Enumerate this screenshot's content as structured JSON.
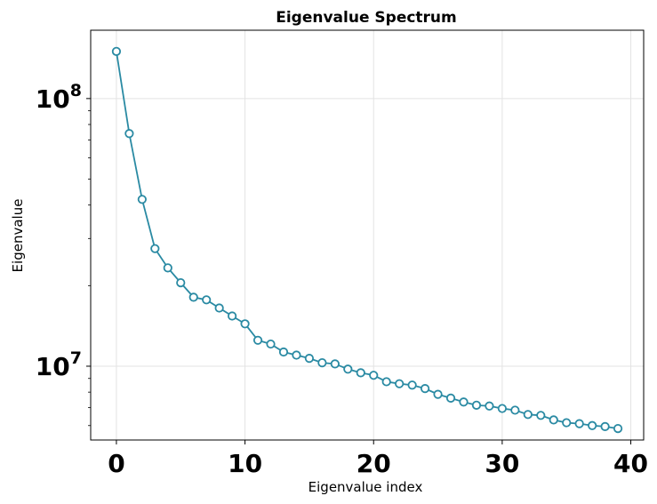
{
  "chart_data": {
    "type": "line",
    "title": "Eigenvalue Spectrum",
    "xlabel": "Eigenvalue index",
    "ylabel": "Eigenvalue",
    "yscale": "log",
    "xlim": [
      -2,
      41
    ],
    "ylim": [
      5300000,
      180000000
    ],
    "xticks": [
      0,
      10,
      20,
      30,
      40
    ],
    "xtick_labels": [
      "0",
      "10",
      "20",
      "30",
      "40"
    ],
    "yticks": [
      {
        "value": 10000000,
        "base": "10",
        "exp": "7"
      },
      {
        "value": 100000000,
        "base": "10",
        "exp": "8"
      }
    ],
    "grid": true,
    "legend": "none",
    "series": [
      {
        "color": "#2a8aa3",
        "marker": "open-circle",
        "x": [
          0,
          1,
          2,
          3,
          4,
          5,
          6,
          7,
          8,
          9,
          10,
          11,
          12,
          13,
          14,
          15,
          16,
          17,
          18,
          19,
          20,
          21,
          22,
          23,
          24,
          25,
          26,
          27,
          28,
          29,
          30,
          31,
          32,
          33,
          34,
          35,
          36,
          37,
          38,
          39
        ],
        "y": [
          150000000,
          74000000,
          42000000,
          27500000,
          23300000,
          20500000,
          18100000,
          17700000,
          16500000,
          15400000,
          14400000,
          12500000,
          12100000,
          11300000,
          11000000,
          10700000,
          10300000,
          10200000,
          9750000,
          9450000,
          9250000,
          8750000,
          8600000,
          8500000,
          8250000,
          7850000,
          7600000,
          7350000,
          7150000,
          7100000,
          6950000,
          6850000,
          6600000,
          6550000,
          6300000,
          6150000,
          6100000,
          6000000,
          5950000,
          5850000
        ]
      }
    ]
  }
}
